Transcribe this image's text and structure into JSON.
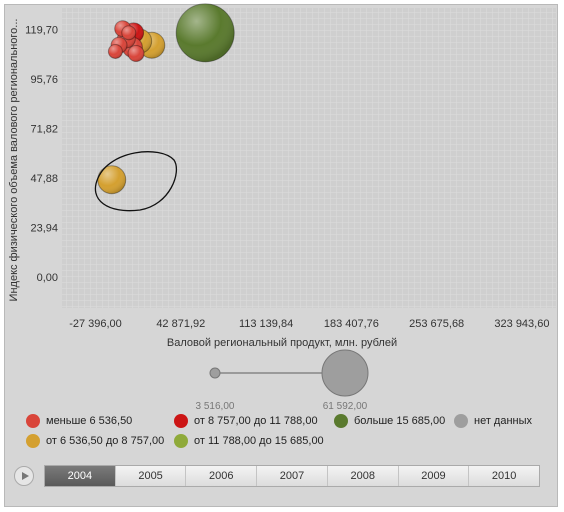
{
  "chart_data": {
    "type": "scatter",
    "subtype": "bubble",
    "xlabel": "Валовой региональный продукт, млн. рублей",
    "ylabel": "Индекс физического объема валового регионального...",
    "x_ticks": [
      "-27 396,00",
      "42 871,92",
      "113 139,84",
      "183 407,76",
      "253 675,68",
      "323 943,60"
    ],
    "y_ticks": [
      "0,00",
      "23,94",
      "47,88",
      "71,82",
      "95,76",
      "119,70"
    ],
    "xlim": [
      -55000,
      352000
    ],
    "ylim": [
      -15,
      130
    ],
    "grid": true,
    "legend_position": "bottom",
    "size_legend": {
      "min_label": "3 516,00",
      "max_label": "61 592,00"
    },
    "legend": [
      {
        "label": "меньше 6 536,50",
        "color": "#d9453a"
      },
      {
        "label": "от 8 757,00 до 11 788,00",
        "color": "#cc1515"
      },
      {
        "label": "больше 15 685,00",
        "color": "#5a7a2e"
      },
      {
        "label": "нет данных",
        "color": "#9e9e9e"
      },
      {
        "label": "от 6 536,50 до 8 757,00",
        "color": "#d4a030"
      },
      {
        "label": "от 11 788,00 до 15 685,00",
        "color": "#8faa3a"
      }
    ],
    "points": [
      {
        "x": -14000,
        "y": 47,
        "size": 14,
        "color": "#d4a030"
      },
      {
        "x": 4000,
        "y": 118,
        "size": 10,
        "color": "#cc1515"
      },
      {
        "x": 9000,
        "y": 114,
        "size": 12,
        "color": "#d4a030"
      },
      {
        "x": 19000,
        "y": 112,
        "size": 13,
        "color": "#d4a030"
      },
      {
        "x": -8000,
        "y": 112,
        "size": 8,
        "color": "#d9453a"
      },
      {
        "x": -2000,
        "y": 115,
        "size": 9,
        "color": "#d9453a"
      },
      {
        "x": 3000,
        "y": 111,
        "size": 10,
        "color": "#d9453a"
      },
      {
        "x": -5000,
        "y": 120,
        "size": 8,
        "color": "#d9453a"
      },
      {
        "x": -11000,
        "y": 109,
        "size": 7,
        "color": "#d9453a"
      },
      {
        "x": 6000,
        "y": 108,
        "size": 8,
        "color": "#d9453a"
      },
      {
        "x": 0,
        "y": 118,
        "size": 7,
        "color": "#d9453a"
      },
      {
        "x": 63000,
        "y": 118,
        "size": 29,
        "color": "#5a7a2e"
      }
    ]
  },
  "timeline": {
    "years": [
      "2004",
      "2005",
      "2006",
      "2007",
      "2008",
      "2009",
      "2010"
    ],
    "active": "2004"
  }
}
